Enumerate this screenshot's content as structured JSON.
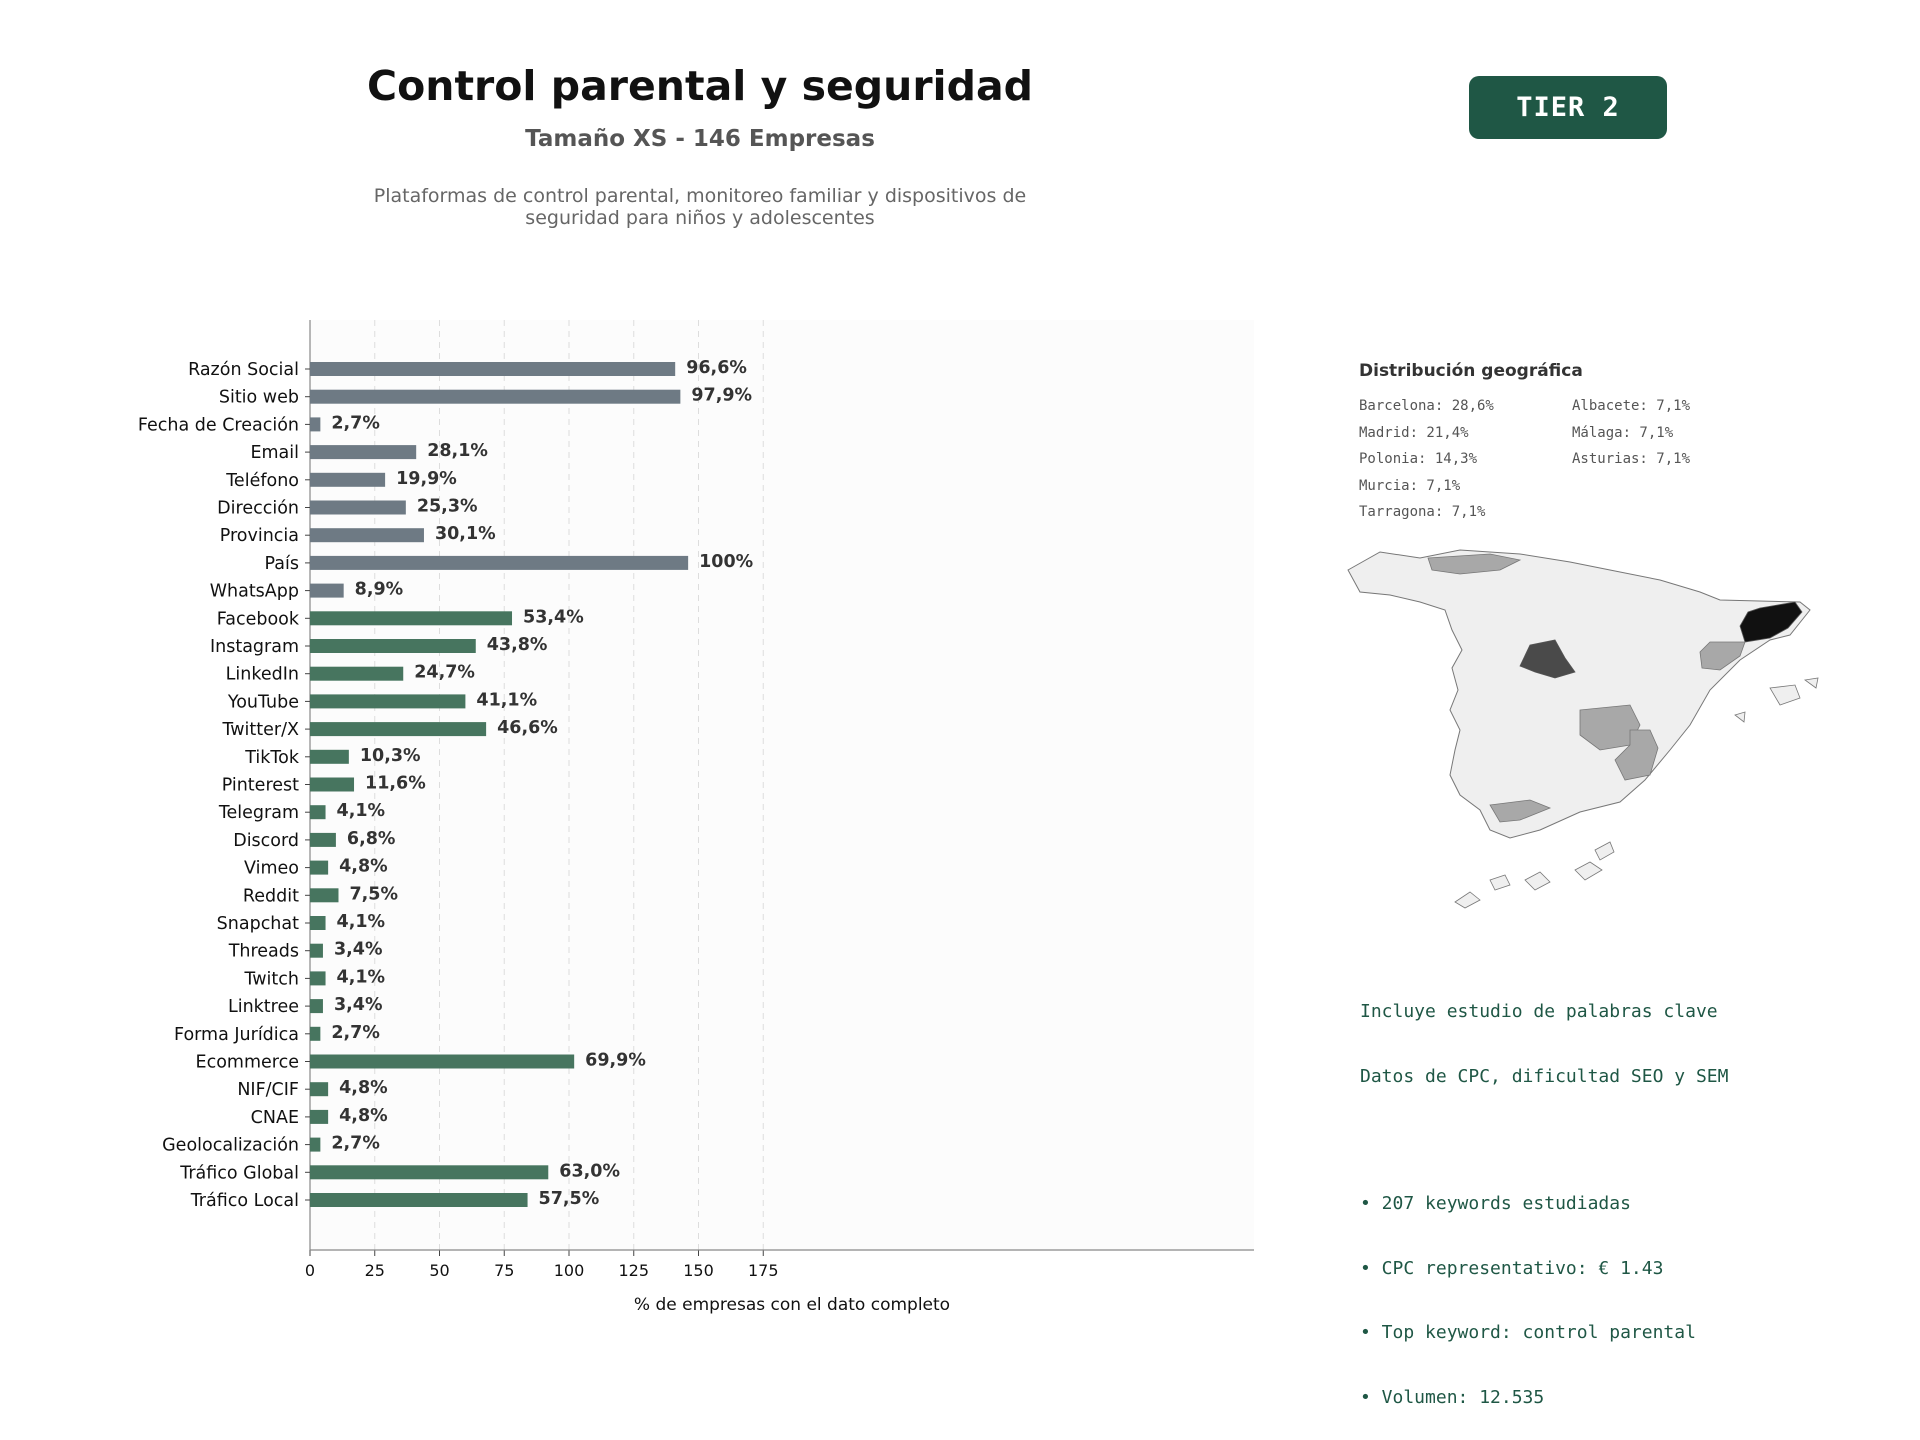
{
  "header": {
    "title": "Control parental y seguridad",
    "subtitle": "Tamaño XS - 146 Empresas",
    "description_line1": "Plataformas de control parental, monitoreo familiar y dispositivos de",
    "description_line2": "seguridad para niños y adolescentes",
    "tier_badge": "TIER 2"
  },
  "colors": {
    "basic_bar": "#6e7a84",
    "social_bar": "#47755f",
    "accent": "#1f5745"
  },
  "chart_data": {
    "type": "bar",
    "orientation": "horizontal",
    "xlabel": "% de empresas con el dato completo",
    "xlim": [
      0,
      182
    ],
    "xticks": [
      0,
      25,
      50,
      75,
      100,
      125,
      150,
      175
    ],
    "grid": "vertical dashed",
    "categories": [
      "Razón Social",
      "Sitio web",
      "Fecha de Creación",
      "Email",
      "Teléfono",
      "Dirección",
      "Provincia",
      "País",
      "WhatsApp",
      "Facebook",
      "Instagram",
      "LinkedIn",
      "YouTube",
      "Twitter/X",
      "TikTok",
      "Pinterest",
      "Telegram",
      "Discord",
      "Vimeo",
      "Reddit",
      "Snapchat",
      "Threads",
      "Twitch",
      "Linktree",
      "Forma Jurídica",
      "Ecommerce",
      "NIF/CIF",
      "CNAE",
      "Geolocalización",
      "Tráfico Global",
      "Tráfico Local"
    ],
    "values": [
      141,
      143,
      4,
      41,
      29,
      37,
      44,
      146,
      13,
      78,
      64,
      36,
      60,
      68,
      15,
      17,
      6,
      10,
      7,
      11,
      6,
      5,
      6,
      5,
      4,
      102,
      7,
      7,
      4,
      92,
      84
    ],
    "labels": [
      "96,6%",
      "97,9%",
      "2,7%",
      "28,1%",
      "19,9%",
      "25,3%",
      "30,1%",
      "100%",
      "8,9%",
      "53,4%",
      "43,8%",
      "24,7%",
      "41,1%",
      "46,6%",
      "10,3%",
      "11,6%",
      "4,1%",
      "6,8%",
      "4,8%",
      "7,5%",
      "4,1%",
      "3,4%",
      "4,1%",
      "3,4%",
      "2,7%",
      "69,9%",
      "4,8%",
      "4,8%",
      "2,7%",
      "63,0%",
      "57,5%"
    ],
    "groups": [
      "basic",
      "basic",
      "basic",
      "basic",
      "basic",
      "basic",
      "basic",
      "basic",
      "basic",
      "social",
      "social",
      "social",
      "social",
      "social",
      "social",
      "social",
      "social",
      "social",
      "social",
      "social",
      "social",
      "social",
      "social",
      "social",
      "social",
      "social",
      "social",
      "social",
      "social",
      "social",
      "social"
    ]
  },
  "geo": {
    "title": "Distribución geográfica",
    "items": [
      "Barcelona: 28,6%",
      "Madrid: 21,4%",
      "Polonia: 14,3%",
      "Murcia: 7,1%",
      "Tarragona: 7,1%",
      "Albacete: 7,1%",
      "Málaga: 7,1%",
      "Asturias: 7,1%"
    ]
  },
  "keywords": {
    "line1": "Incluye estudio de palabras clave",
    "line2": "Datos de CPC, dificultad SEO y SEM",
    "bullet1": "• 207 keywords estudiadas",
    "bullet2": "• CPC representativo: € 1.43",
    "bullet3": "• Top keyword: control parental",
    "bullet4": "• Volumen: 12.535"
  }
}
